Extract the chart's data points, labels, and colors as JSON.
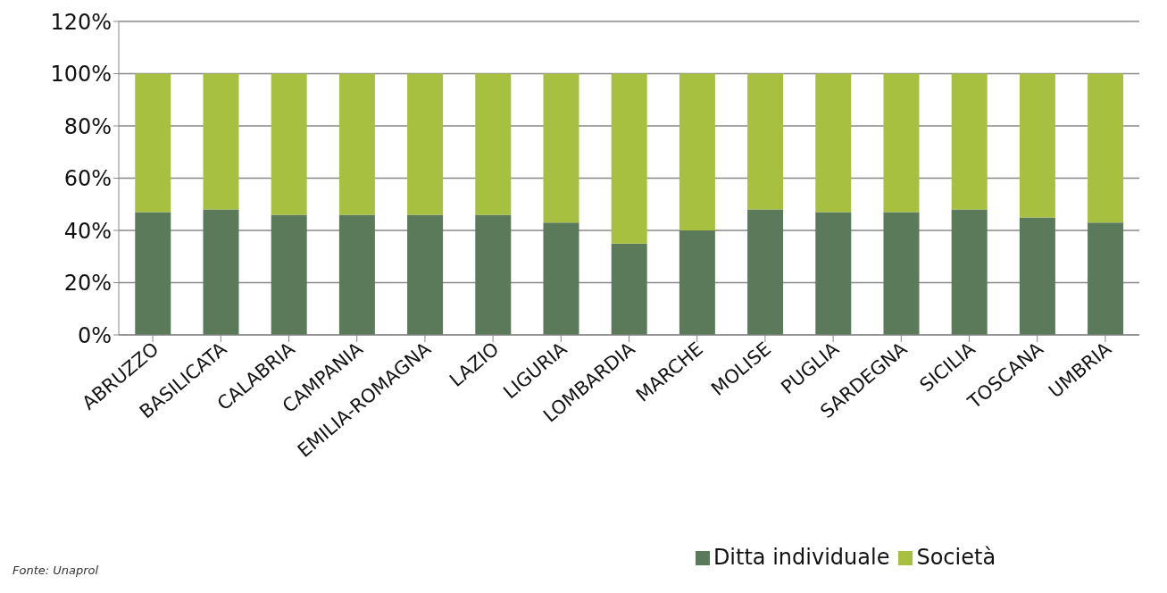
{
  "chart_data": {
    "type": "bar",
    "stacked": true,
    "categories": [
      "ABRUZZO",
      "BASILICATA",
      "CALABRIA",
      "CAMPANIA",
      "EMILIA-ROMAGNA",
      "LAZIO",
      "LIGURIA",
      "LOMBARDIA",
      "MARCHE",
      "MOLISE",
      "PUGLIA",
      "SARDEGNA",
      "SICILIA",
      "TOSCANA",
      "UMBRIA"
    ],
    "series": [
      {
        "name": "Ditta individuale",
        "color": "#5a7a5a",
        "values": [
          47,
          48,
          46,
          46,
          46,
          46,
          43,
          35,
          40,
          48,
          47,
          47,
          48,
          45,
          43
        ]
      },
      {
        "name": "Società",
        "color": "#a8c040",
        "values": [
          53,
          52,
          54,
          54,
          54,
          54,
          57,
          65,
          60,
          52,
          53,
          53,
          52,
          55,
          57
        ]
      }
    ],
    "ylim": [
      0,
      120
    ],
    "yticks": [
      {
        "value": 0,
        "label": "0%"
      },
      {
        "value": 20,
        "label": "20%"
      },
      {
        "value": 40,
        "label": "40%"
      },
      {
        "value": 60,
        "label": "60%"
      },
      {
        "value": 80,
        "label": "80%"
      },
      {
        "value": 100,
        "label": "100%"
      },
      {
        "value": 120,
        "label": "120%"
      }
    ],
    "grid": "y",
    "legend": "bottom",
    "annotations": [
      "Fonte: Unaprol"
    ]
  }
}
